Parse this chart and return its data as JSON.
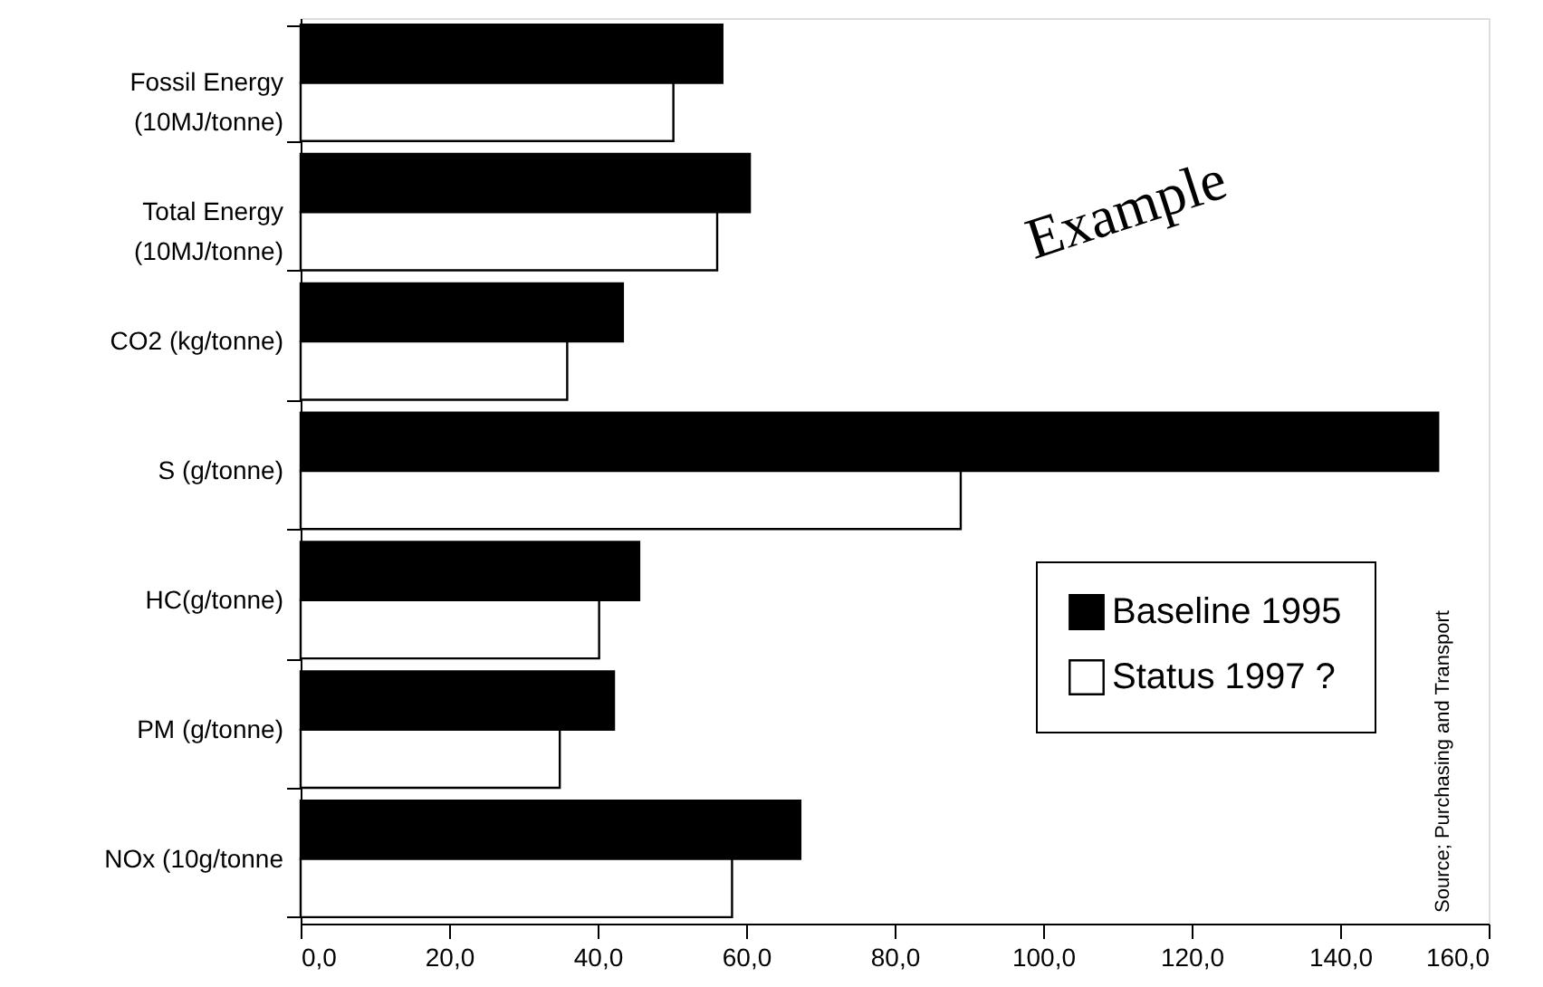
{
  "chart_data": {
    "type": "bar",
    "orientation": "horizontal",
    "categories": [
      "Fossil Energy\n(10MJ/tonne)",
      "Total Energy\n(10MJ/tonne)",
      "CO2 (kg/tonne)",
      "S (g/tonne)",
      "HC(g/tonne)",
      "PM (g/tonne)",
      "NOx (10g/tonne"
    ],
    "series": [
      {
        "name": "Baseline 1995",
        "color": "#000000",
        "values": [
          56.8,
          60.5,
          43.4,
          153.2,
          45.6,
          42.2,
          67.3
        ]
      },
      {
        "name": "Status 1997 ?",
        "color": "#ffffff",
        "values": [
          50.2,
          56.1,
          35.9,
          88.9,
          40.2,
          34.9,
          58.1
        ]
      }
    ],
    "xlim": [
      0,
      160
    ],
    "xticks": [
      {
        "value": 0,
        "label": "0,0"
      },
      {
        "value": 20,
        "label": "20,0"
      },
      {
        "value": 40,
        "label": "40,0"
      },
      {
        "value": 60,
        "label": "60,0"
      },
      {
        "value": 80,
        "label": "80,0"
      },
      {
        "value": 100,
        "label": "100,0"
      },
      {
        "value": 120,
        "label": "120,0"
      },
      {
        "value": 140,
        "label": "140,0"
      },
      {
        "value": 160,
        "label": "160,0"
      }
    ],
    "legend": "bottom right",
    "grid": false,
    "annotations": [
      "Example",
      "Source; Purchasing and Transport"
    ]
  }
}
